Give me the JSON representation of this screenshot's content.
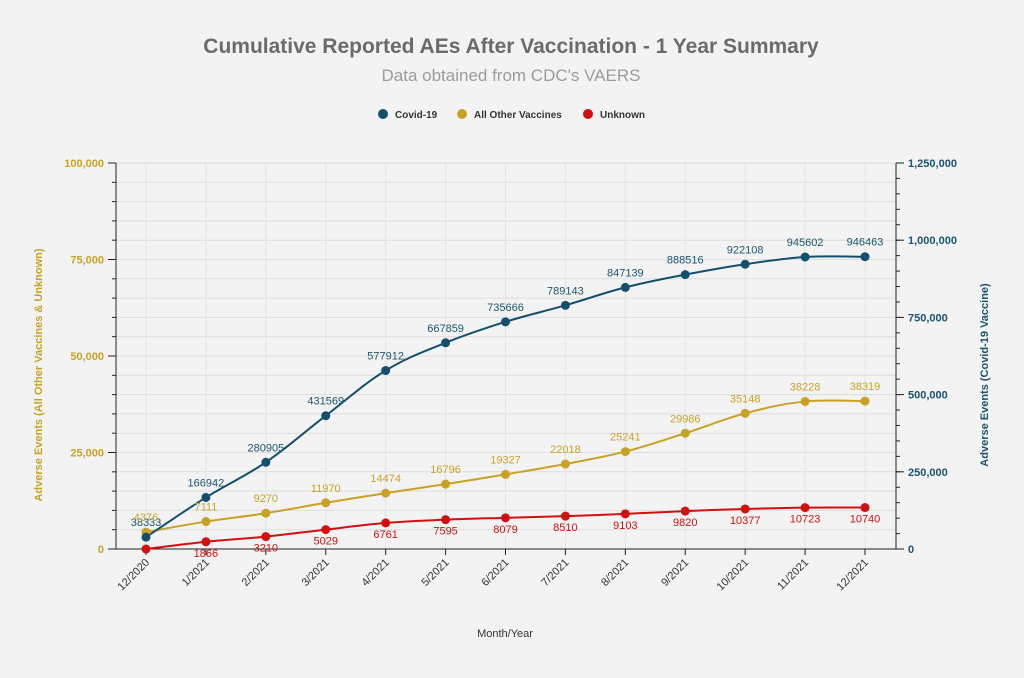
{
  "chart_data": {
    "type": "line",
    "title": "Cumulative Reported AEs After Vaccination - 1 Year Summary",
    "subtitle": "Data obtained from CDC's VAERS",
    "xlabel": "Month/Year",
    "ylabel_left": "Adverse Events (All Other Vaccines & Unknown)",
    "ylabel_right": "Adverse Events (Covid-19 Vaccine)",
    "categories": [
      "12/2020",
      "1/2021",
      "2/2021",
      "3/2021",
      "4/2021",
      "5/2021",
      "6/2021",
      "7/2021",
      "8/2021",
      "9/2021",
      "10/2021",
      "11/2021",
      "12/2021"
    ],
    "y_left": {
      "min": 0,
      "max": 100000,
      "ticks": [
        0,
        25000,
        50000,
        75000,
        100000
      ],
      "tick_labels": [
        "0",
        "25,000",
        "50,000",
        "75,000",
        "100,000"
      ],
      "color": "#c9a224"
    },
    "y_right": {
      "min": 0,
      "max": 1250000,
      "ticks": [
        0,
        250000,
        500000,
        750000,
        1000000,
        1250000
      ],
      "tick_labels": [
        "0",
        "250,000",
        "500,000",
        "750,000",
        "1,000,000",
        "1,250,000"
      ],
      "color": "#1a5470"
    },
    "legend_position": "top-center",
    "grid": true,
    "series": [
      {
        "name": "Covid-19",
        "axis": "right",
        "color": "#14506e",
        "label_color": "#1a5470",
        "values": [
          38333,
          166942,
          280905,
          431569,
          577912,
          667859,
          735666,
          789143,
          847139,
          888516,
          922108,
          945602,
          946463
        ]
      },
      {
        "name": "All Other Vaccines",
        "axis": "left",
        "color": "#c9a224",
        "label_color": "#c9a224",
        "values": [
          4376,
          7111,
          9270,
          11970,
          14474,
          16796,
          19327,
          22018,
          25241,
          29986,
          35148,
          38228,
          38319
        ]
      },
      {
        "name": "Unknown",
        "axis": "left",
        "color": "#d40f0f",
        "label_color": "#d40f0f",
        "values": [
          0,
          1866,
          3210,
          5029,
          6761,
          7595,
          8079,
          8510,
          9103,
          9820,
          10377,
          10723,
          10740
        ],
        "labels": [
          "",
          "1866",
          "3210",
          "5029",
          "6761",
          "7595",
          "8079",
          "8510",
          "9103",
          "9820",
          "10377",
          "10723",
          "10740"
        ]
      }
    ]
  }
}
